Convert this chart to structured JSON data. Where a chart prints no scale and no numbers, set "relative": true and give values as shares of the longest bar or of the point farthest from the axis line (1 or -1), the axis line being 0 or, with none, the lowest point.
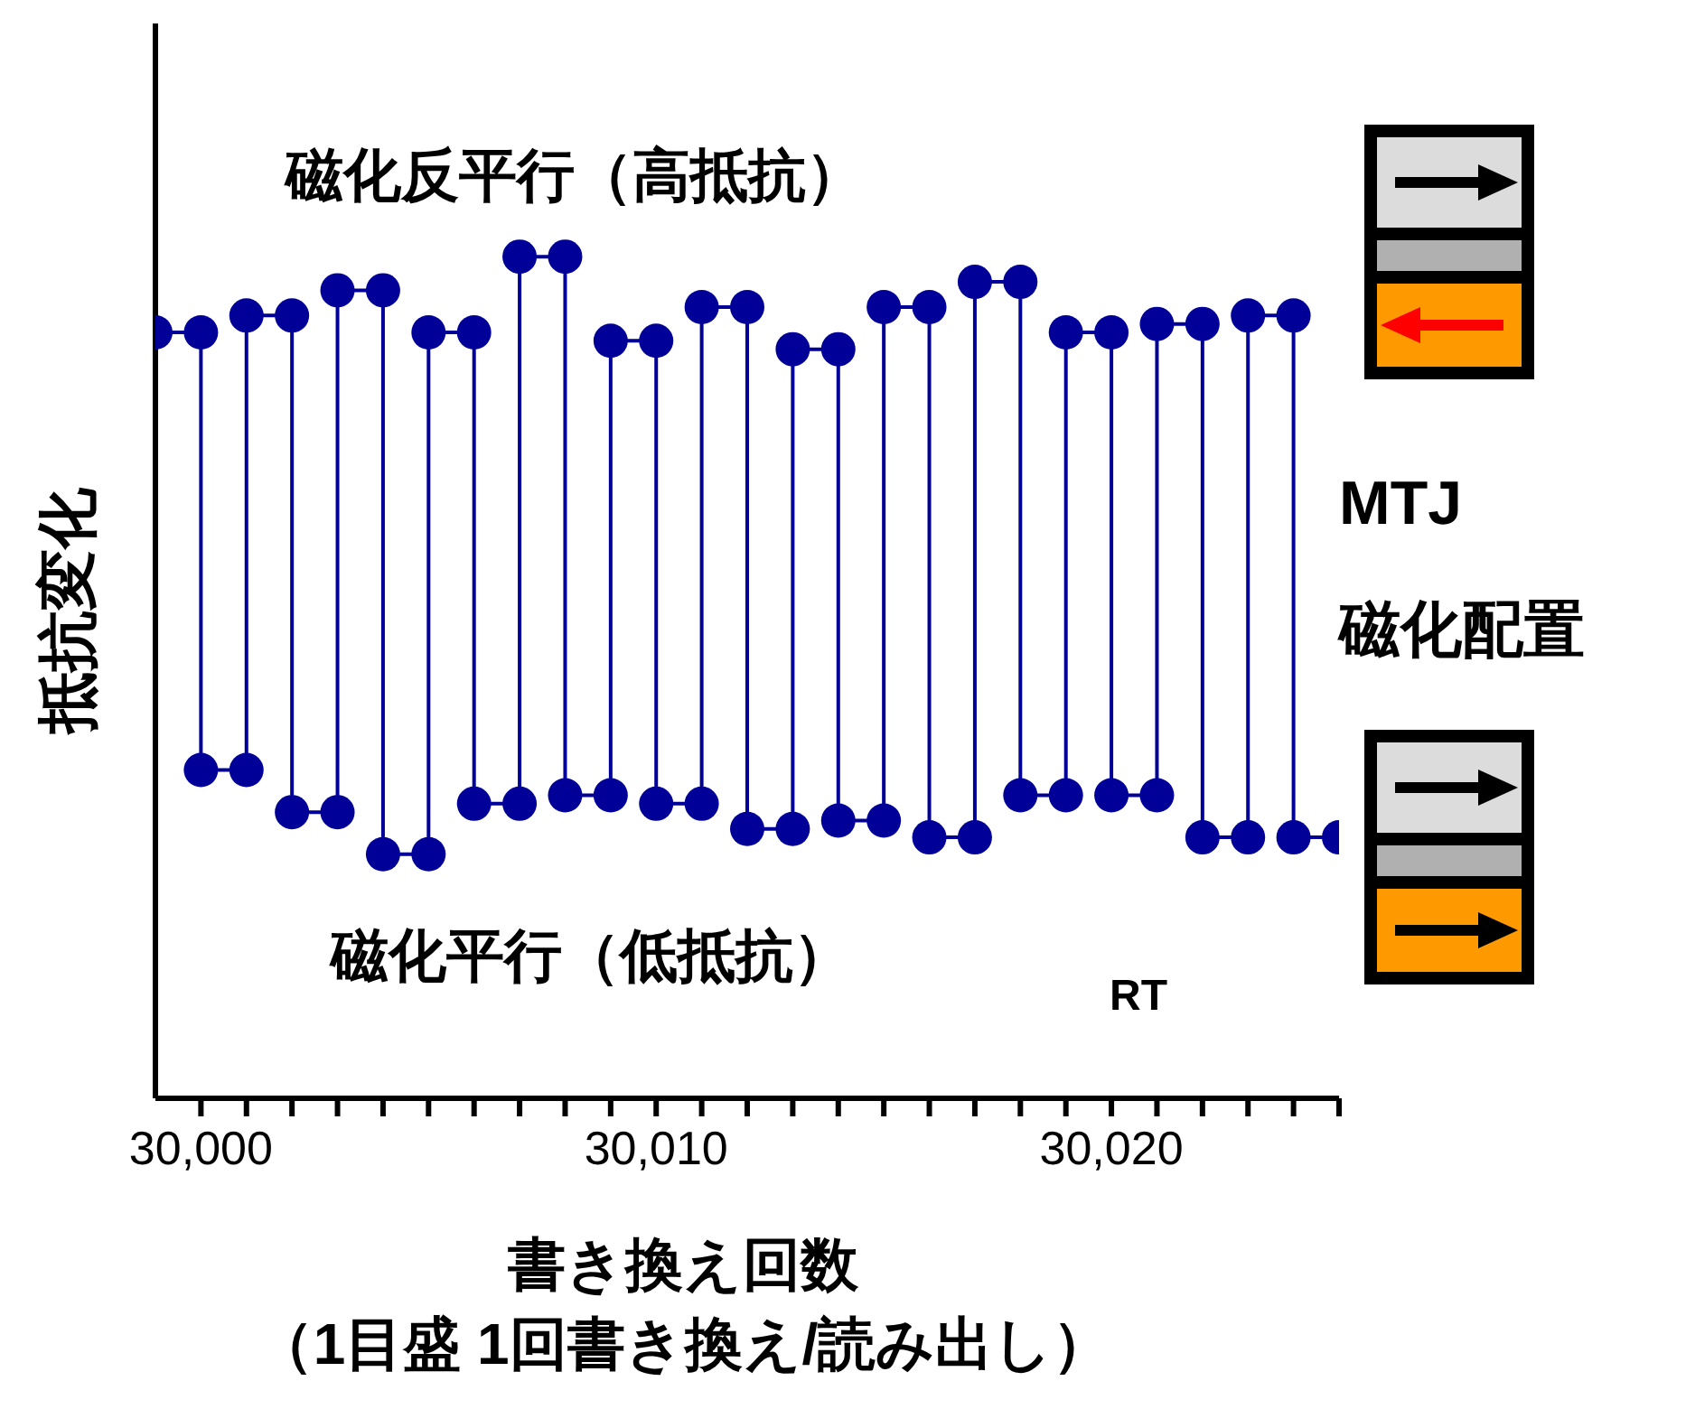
{
  "chart_data": {
    "type": "line",
    "relative": true,
    "ylabel": "抵抗変化",
    "xlabel": "書き換え回数",
    "annotations": [
      "磁化反平行（高抵抗）",
      "磁化平行（低抵抗）",
      "RT",
      "MTJ",
      "磁化配置",
      "（1目盛 1回書き換え/読み出し）"
    ],
    "marker": "circle",
    "line_style": "solid",
    "xlim": [
      29999,
      30025
    ],
    "xticks": [
      {
        "value": 30000,
        "label": "30,000"
      },
      {
        "value": 30001,
        "label": null
      },
      {
        "value": 30002,
        "label": null
      },
      {
        "value": 30003,
        "label": null
      },
      {
        "value": 30004,
        "label": null
      },
      {
        "value": 30005,
        "label": null
      },
      {
        "value": 30006,
        "label": null
      },
      {
        "value": 30007,
        "label": null
      },
      {
        "value": 30008,
        "label": null
      },
      {
        "value": 30009,
        "label": null
      },
      {
        "value": 30010,
        "label": "30,010"
      },
      {
        "value": 30011,
        "label": null
      },
      {
        "value": 30012,
        "label": null
      },
      {
        "value": 30013,
        "label": null
      },
      {
        "value": 30014,
        "label": null
      },
      {
        "value": 30015,
        "label": null
      },
      {
        "value": 30016,
        "label": null
      },
      {
        "value": 30017,
        "label": null
      },
      {
        "value": 30018,
        "label": null
      },
      {
        "value": 30019,
        "label": null
      },
      {
        "value": 30020,
        "label": "30,020"
      },
      {
        "value": 30021,
        "label": null
      },
      {
        "value": 30022,
        "label": null
      },
      {
        "value": 30023,
        "label": null
      },
      {
        "value": 30024,
        "label": null
      },
      {
        "value": 30025,
        "label": null
      }
    ],
    "x": [
      29999,
      30000,
      30000,
      30001,
      30001,
      30002,
      30002,
      30003,
      30003,
      30004,
      30004,
      30005,
      30005,
      30006,
      30006,
      30007,
      30007,
      30008,
      30008,
      30009,
      30009,
      30010,
      30010,
      30011,
      30011,
      30012,
      30012,
      30013,
      30013,
      30014,
      30014,
      30015,
      30015,
      30016,
      30016,
      30017,
      30017,
      30018,
      30018,
      30019,
      30019,
      30020,
      30020,
      30021,
      30021,
      30022,
      30022,
      30023,
      30023,
      30024,
      30024,
      30025
    ],
    "series": [
      {
        "color": "#000099",
        "values": [
          0.91,
          0.91,
          0.39,
          0.39,
          0.93,
          0.93,
          0.34,
          0.34,
          0.96,
          0.96,
          0.29,
          0.29,
          0.91,
          0.91,
          0.35,
          0.35,
          1,
          1,
          0.36,
          0.36,
          0.9,
          0.9,
          0.35,
          0.35,
          0.94,
          0.94,
          0.32,
          0.32,
          0.89,
          0.89,
          0.33,
          0.33,
          0.94,
          0.94,
          0.31,
          0.31,
          0.97,
          0.97,
          0.36,
          0.36,
          0.91,
          0.91,
          0.36,
          0.36,
          0.92,
          0.92,
          0.31,
          0.31,
          0.93,
          0.93,
          0.31,
          0.31
        ]
      }
    ]
  }
}
